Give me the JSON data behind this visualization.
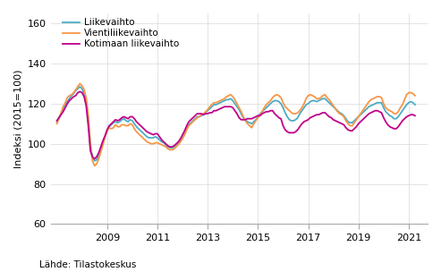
{
  "ylabel": "Indeksi (2015=100)",
  "source_text": "Lähde: Tilastokeskus",
  "ylim": [
    60,
    165
  ],
  "yticks": [
    60,
    80,
    100,
    120,
    140,
    160
  ],
  "xtick_years": [
    2009,
    2011,
    2013,
    2015,
    2017,
    2019,
    2021
  ],
  "xlim_start": 2006.75,
  "xlim_end": 2021.75,
  "legend_labels": [
    "Liikevaihto",
    "Vientiliikevaihto",
    "Kotimaan liikevaihto"
  ],
  "colors": [
    "#4bacc6",
    "#f79646",
    "#c0008a"
  ],
  "linewidth": 1.3,
  "n_months": 172,
  "liikevaihto": [
    111.0,
    113.0,
    115.0,
    117.0,
    119.5,
    121.0,
    122.5,
    124.0,
    125.0,
    126.5,
    127.5,
    128.5,
    127.5,
    125.0,
    121.0,
    112.0,
    99.0,
    93.0,
    91.5,
    92.0,
    94.5,
    97.0,
    100.5,
    103.5,
    106.5,
    108.5,
    109.5,
    110.5,
    111.0,
    110.5,
    111.0,
    112.0,
    112.5,
    111.5,
    111.0,
    112.0,
    111.5,
    110.0,
    108.5,
    107.5,
    106.5,
    105.5,
    104.5,
    103.5,
    103.0,
    103.0,
    103.0,
    103.5,
    103.0,
    102.0,
    101.0,
    100.5,
    99.5,
    98.5,
    98.0,
    98.0,
    98.5,
    99.5,
    100.5,
    101.5,
    103.0,
    105.0,
    107.5,
    109.5,
    110.5,
    111.5,
    112.5,
    113.5,
    113.5,
    114.0,
    114.5,
    115.5,
    116.5,
    117.5,
    118.5,
    119.5,
    119.5,
    120.0,
    120.5,
    121.0,
    121.5,
    122.0,
    122.0,
    122.5,
    121.5,
    120.0,
    118.5,
    117.0,
    115.0,
    113.0,
    112.0,
    111.0,
    110.5,
    110.0,
    111.0,
    112.0,
    113.5,
    115.0,
    116.0,
    117.0,
    118.0,
    119.0,
    120.0,
    121.0,
    121.5,
    121.5,
    121.0,
    120.0,
    118.0,
    115.5,
    113.5,
    112.0,
    111.5,
    111.5,
    112.0,
    113.0,
    115.0,
    116.5,
    118.0,
    119.5,
    120.0,
    121.0,
    121.5,
    121.5,
    121.0,
    121.5,
    122.0,
    122.5,
    122.5,
    121.5,
    120.5,
    119.5,
    118.5,
    117.5,
    116.5,
    115.5,
    115.0,
    114.0,
    112.5,
    111.0,
    110.5,
    110.5,
    111.5,
    112.5,
    113.5,
    114.5,
    115.5,
    116.5,
    117.5,
    118.5,
    119.0,
    119.5,
    120.0,
    120.5,
    120.5,
    120.5,
    118.0,
    116.0,
    115.0,
    114.0,
    113.5,
    112.5,
    112.5,
    113.5,
    115.0,
    116.5,
    118.0,
    119.5,
    120.5,
    121.0,
    120.5,
    119.5
  ],
  "vientiliikevaihto": [
    110.0,
    112.5,
    115.5,
    118.5,
    120.5,
    123.0,
    124.0,
    124.5,
    125.5,
    127.0,
    128.5,
    130.0,
    129.0,
    127.0,
    123.0,
    114.0,
    100.0,
    91.5,
    89.0,
    90.0,
    92.5,
    96.0,
    99.5,
    103.5,
    106.5,
    108.0,
    107.5,
    108.0,
    109.5,
    108.5,
    108.5,
    109.5,
    109.5,
    109.0,
    109.0,
    110.0,
    109.5,
    107.5,
    106.0,
    105.0,
    104.0,
    103.0,
    102.0,
    101.0,
    100.5,
    100.0,
    100.0,
    100.5,
    100.5,
    100.0,
    99.5,
    99.0,
    98.5,
    97.5,
    97.0,
    97.0,
    97.5,
    98.5,
    99.5,
    101.0,
    102.5,
    104.5,
    107.0,
    109.0,
    110.0,
    111.0,
    112.0,
    113.0,
    113.5,
    114.5,
    115.0,
    116.0,
    117.0,
    118.5,
    119.5,
    120.5,
    120.5,
    121.0,
    121.5,
    122.0,
    122.5,
    123.5,
    124.0,
    124.5,
    123.5,
    122.0,
    120.0,
    118.0,
    116.0,
    113.5,
    111.5,
    110.0,
    109.0,
    108.0,
    110.0,
    111.5,
    113.0,
    114.5,
    116.0,
    118.0,
    119.5,
    120.5,
    121.5,
    123.0,
    124.0,
    124.5,
    124.0,
    123.0,
    120.5,
    118.5,
    117.5,
    116.5,
    115.5,
    115.0,
    115.0,
    115.5,
    116.5,
    118.0,
    120.0,
    122.5,
    124.0,
    124.5,
    124.0,
    123.5,
    122.5,
    122.5,
    123.0,
    124.0,
    124.5,
    123.0,
    122.0,
    120.5,
    119.0,
    117.5,
    116.0,
    115.0,
    114.5,
    113.5,
    111.5,
    110.0,
    109.0,
    109.0,
    110.5,
    112.0,
    113.5,
    115.0,
    116.5,
    118.0,
    119.5,
    121.0,
    122.0,
    122.5,
    123.0,
    123.5,
    123.5,
    123.0,
    120.0,
    118.0,
    117.0,
    116.5,
    116.0,
    115.0,
    115.0,
    116.0,
    118.0,
    119.5,
    122.0,
    124.5,
    125.5,
    125.5,
    125.0,
    124.0
  ],
  "kotimaan_liikevaihto": [
    111.5,
    113.0,
    114.5,
    116.0,
    118.0,
    120.0,
    121.5,
    122.5,
    123.5,
    124.0,
    125.5,
    126.0,
    125.5,
    123.5,
    119.0,
    109.0,
    96.5,
    93.5,
    92.5,
    93.5,
    95.5,
    98.5,
    101.5,
    104.0,
    107.0,
    109.0,
    110.0,
    111.0,
    112.0,
    111.5,
    112.0,
    113.0,
    113.5,
    113.0,
    112.5,
    113.5,
    113.5,
    112.5,
    111.0,
    110.0,
    109.0,
    108.0,
    107.0,
    106.0,
    105.5,
    105.0,
    104.5,
    105.0,
    105.0,
    103.5,
    102.0,
    101.0,
    100.0,
    99.0,
    98.5,
    98.5,
    99.0,
    100.0,
    101.0,
    102.5,
    104.5,
    106.5,
    109.0,
    111.0,
    112.0,
    113.0,
    114.0,
    115.0,
    115.0,
    115.0,
    114.5,
    115.0,
    115.0,
    115.5,
    115.5,
    116.5,
    116.5,
    117.0,
    117.5,
    118.0,
    118.5,
    118.5,
    118.5,
    118.5,
    118.0,
    116.5,
    115.0,
    113.0,
    112.0,
    112.0,
    112.0,
    112.5,
    112.5,
    112.5,
    113.0,
    113.5,
    114.0,
    114.0,
    115.0,
    115.5,
    116.0,
    116.0,
    116.5,
    116.5,
    115.0,
    114.0,
    113.0,
    112.5,
    109.0,
    107.0,
    106.0,
    105.5,
    105.5,
    105.5,
    106.0,
    107.0,
    108.5,
    110.0,
    111.0,
    111.5,
    112.0,
    113.0,
    113.5,
    114.0,
    114.5,
    114.5,
    115.0,
    115.5,
    115.5,
    114.5,
    113.5,
    113.0,
    112.0,
    111.5,
    111.0,
    110.5,
    110.0,
    109.5,
    108.0,
    107.0,
    106.5,
    106.5,
    107.5,
    108.5,
    110.0,
    111.0,
    112.0,
    113.0,
    114.0,
    115.0,
    115.5,
    116.0,
    116.5,
    116.5,
    116.0,
    115.5,
    113.0,
    111.0,
    109.5,
    108.5,
    108.0,
    107.5,
    107.5,
    108.5,
    110.0,
    111.5,
    112.5,
    113.5,
    114.0,
    114.5,
    114.5,
    114.0
  ]
}
